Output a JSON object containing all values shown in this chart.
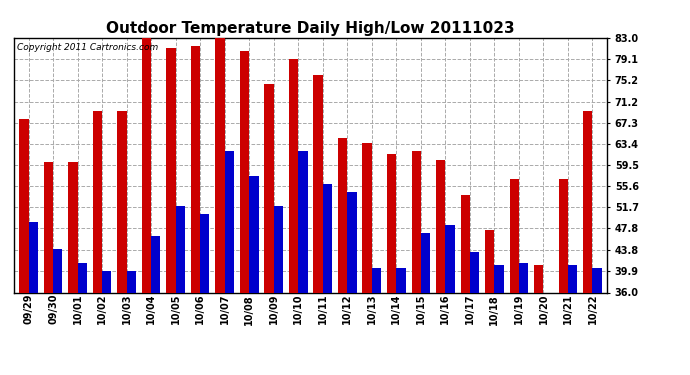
{
  "title": "Outdoor Temperature Daily High/Low 20111023",
  "copyright": "Copyright 2011 Cartronics.com",
  "categories": [
    "09/29",
    "09/30",
    "10/01",
    "10/02",
    "10/03",
    "10/04",
    "10/05",
    "10/06",
    "10/07",
    "10/08",
    "10/09",
    "10/10",
    "10/11",
    "10/12",
    "10/13",
    "10/14",
    "10/15",
    "10/16",
    "10/17",
    "10/18",
    "10/19",
    "10/20",
    "10/21",
    "10/22"
  ],
  "highs": [
    68.0,
    60.0,
    60.0,
    69.5,
    69.5,
    83.0,
    81.0,
    81.5,
    83.0,
    80.5,
    74.5,
    79.1,
    76.0,
    64.5,
    63.5,
    61.5,
    62.0,
    60.5,
    54.0,
    47.5,
    57.0,
    41.0,
    57.0,
    69.5
  ],
  "lows": [
    49.0,
    44.0,
    41.5,
    39.9,
    39.9,
    46.5,
    52.0,
    50.5,
    62.0,
    57.5,
    52.0,
    62.0,
    56.0,
    54.5,
    40.5,
    40.5,
    47.0,
    48.5,
    43.5,
    41.0,
    41.5,
    36.0,
    41.0,
    40.5
  ],
  "high_color": "#cc0000",
  "low_color": "#0000cc",
  "background_color": "#ffffff",
  "grid_color": "#aaaaaa",
  "ymin": 36.0,
  "ymax": 83.0,
  "yticks": [
    36.0,
    39.9,
    43.8,
    47.8,
    51.7,
    55.6,
    59.5,
    63.4,
    67.3,
    71.2,
    75.2,
    79.1,
    83.0
  ],
  "title_fontsize": 11,
  "copyright_fontsize": 6.5,
  "tick_fontsize": 7,
  "bar_width": 0.38
}
